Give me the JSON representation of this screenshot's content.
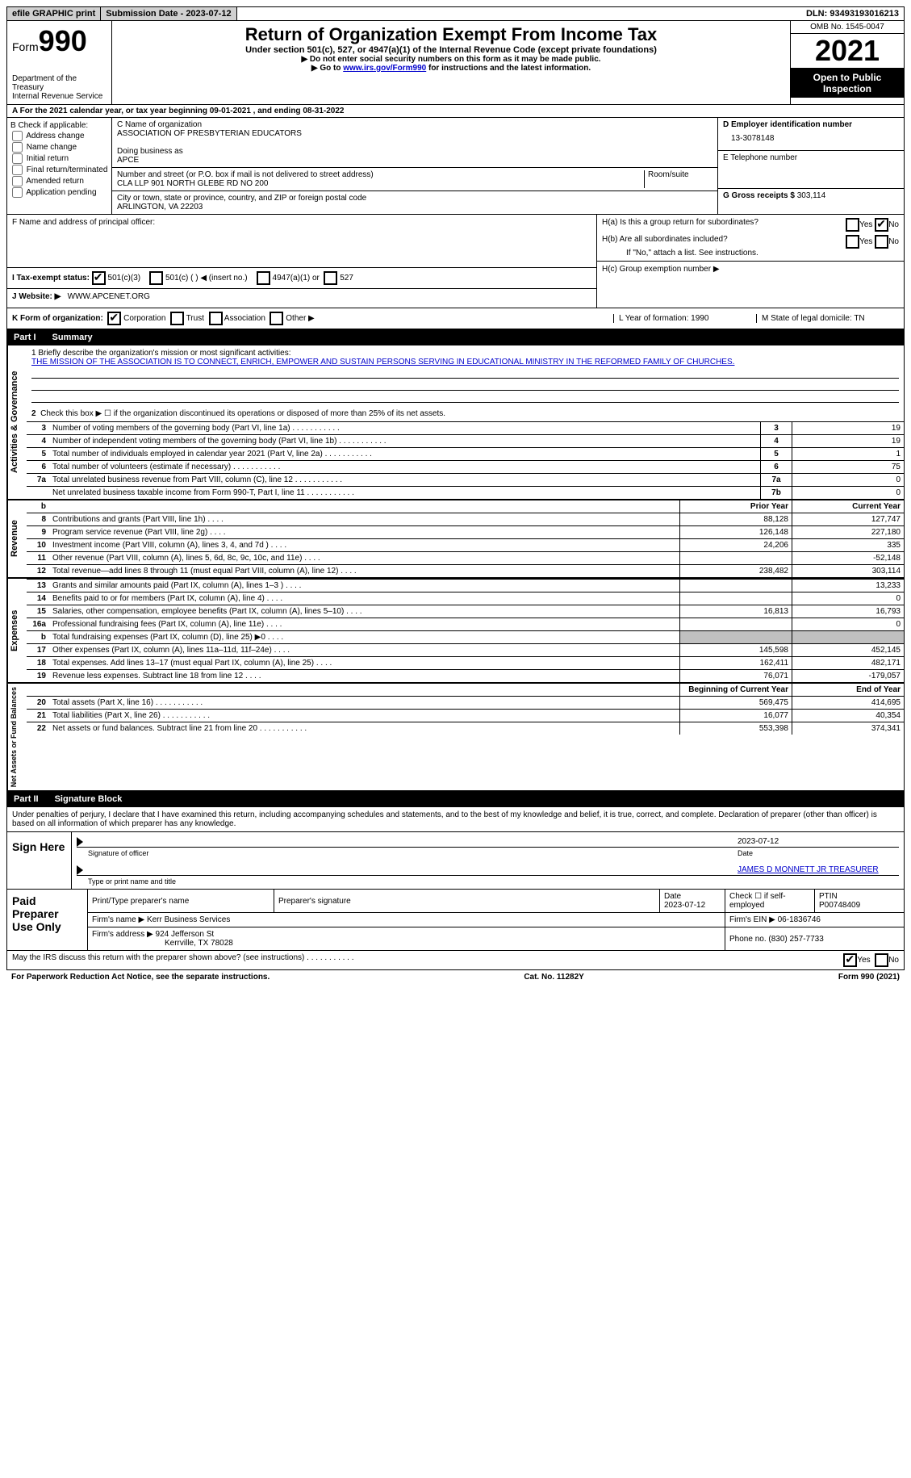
{
  "top": {
    "efile": "efile GRAPHIC print",
    "subdate_label": "Submission Date - 2023-07-12",
    "dln": "DLN: 93493193016213"
  },
  "header": {
    "form_word": "Form",
    "form_num": "990",
    "dept": "Department of the Treasury",
    "irs": "Internal Revenue Service",
    "title": "Return of Organization Exempt From Income Tax",
    "subtitle": "Under section 501(c), 527, or 4947(a)(1) of the Internal Revenue Code (except private foundations)",
    "note1": "▶ Do not enter social security numbers on this form as it may be made public.",
    "note2_pre": "▶ Go to ",
    "note2_link": "www.irs.gov/Form990",
    "note2_post": " for instructions and the latest information.",
    "omb": "OMB No. 1545-0047",
    "year": "2021",
    "pubinsp": "Open to Public Inspection"
  },
  "rowA": "A For the 2021 calendar year, or tax year beginning 09-01-2021    , and ending 08-31-2022",
  "colB": {
    "head": "B Check if applicable:",
    "opts": [
      "Address change",
      "Name change",
      "Initial return",
      "Final return/terminated",
      "Amended return",
      "Application pending"
    ]
  },
  "colC": {
    "name_label": "C Name of organization",
    "name": "ASSOCIATION OF PRESBYTERIAN EDUCATORS",
    "dba_label": "Doing business as",
    "dba": "APCE",
    "street_label": "Number and street (or P.O. box if mail is not delivered to street address)",
    "room_label": "Room/suite",
    "street": "CLA LLP 901 NORTH GLEBE RD NO 200",
    "city_label": "City or town, state or province, country, and ZIP or foreign postal code",
    "city": "ARLINGTON, VA  22203"
  },
  "colD": {
    "ein_label": "D Employer identification number",
    "ein": "13-3078148",
    "phone_label": "E Telephone number",
    "gross_label": "G Gross receipts $",
    "gross": "303,114"
  },
  "sectionF": {
    "label": "F  Name and address of principal officer:"
  },
  "sectionH": {
    "ha": "H(a)  Is this a group return for subordinates?",
    "hb": "H(b)  Are all subordinates included?",
    "hb_note": "If \"No,\" attach a list. See instructions.",
    "hc": "H(c)  Group exemption number ▶",
    "yes": "Yes",
    "no": "No"
  },
  "statusI": {
    "label": "I    Tax-exempt status:",
    "o1": "501(c)(3)",
    "o2": "501(c) (  ) ◀ (insert no.)",
    "o3": "4947(a)(1) or",
    "o4": "527"
  },
  "websiteJ": {
    "label": "J   Website: ▶",
    "val": "WWW.APCENET.ORG"
  },
  "rowK": {
    "label": "K Form of organization:",
    "o1": "Corporation",
    "o2": "Trust",
    "o3": "Association",
    "o4": "Other ▶",
    "L": "L Year of formation: 1990",
    "M": "M State of legal domicile: TN"
  },
  "part1": {
    "num": "Part I",
    "title": "Summary",
    "vlabels": [
      "Activities & Governance",
      "Revenue",
      "Expenses",
      "Net Assets or Fund Balances"
    ],
    "line1_label": "1   Briefly describe the organization's mission or most significant activities:",
    "mission": "THE MISSION OF THE ASSOCIATION IS TO CONNECT, ENRICH, EMPOWER AND SUSTAIN PERSONS SERVING IN EDUCATIONAL MINISTRY IN THE REFORMED FAMILY OF CHURCHES.",
    "line2": "Check this box ▶ ☐ if the organization discontinued its operations or disposed of more than 25% of its net assets.",
    "lines_gov": [
      {
        "n": "3",
        "desc": "Number of voting members of the governing body (Part VI, line 1a)",
        "box": "3",
        "val": "19"
      },
      {
        "n": "4",
        "desc": "Number of independent voting members of the governing body (Part VI, line 1b)",
        "box": "4",
        "val": "19"
      },
      {
        "n": "5",
        "desc": "Total number of individuals employed in calendar year 2021 (Part V, line 2a)",
        "box": "5",
        "val": "1"
      },
      {
        "n": "6",
        "desc": "Total number of volunteers (estimate if necessary)",
        "box": "6",
        "val": "75"
      },
      {
        "n": "7a",
        "desc": "Total unrelated business revenue from Part VIII, column (C), line 12",
        "box": "7a",
        "val": "0"
      },
      {
        "n": "",
        "desc": "Net unrelated business taxable income from Form 990-T, Part I, line 11",
        "box": "7b",
        "val": "0"
      }
    ],
    "col_headers": {
      "b": "b",
      "prior": "Prior Year",
      "current": "Current Year"
    },
    "lines_rev": [
      {
        "n": "8",
        "desc": "Contributions and grants (Part VIII, line 1h)",
        "prior": "88,128",
        "curr": "127,747"
      },
      {
        "n": "9",
        "desc": "Program service revenue (Part VIII, line 2g)",
        "prior": "126,148",
        "curr": "227,180"
      },
      {
        "n": "10",
        "desc": "Investment income (Part VIII, column (A), lines 3, 4, and 7d )",
        "prior": "24,206",
        "curr": "335"
      },
      {
        "n": "11",
        "desc": "Other revenue (Part VIII, column (A), lines 5, 6d, 8c, 9c, 10c, and 11e)",
        "prior": "",
        "curr": "-52,148"
      },
      {
        "n": "12",
        "desc": "Total revenue—add lines 8 through 11 (must equal Part VIII, column (A), line 12)",
        "prior": "238,482",
        "curr": "303,114"
      }
    ],
    "lines_exp": [
      {
        "n": "13",
        "desc": "Grants and similar amounts paid (Part IX, column (A), lines 1–3 )",
        "prior": "",
        "curr": "13,233"
      },
      {
        "n": "14",
        "desc": "Benefits paid to or for members (Part IX, column (A), line 4)",
        "prior": "",
        "curr": "0"
      },
      {
        "n": "15",
        "desc": "Salaries, other compensation, employee benefits (Part IX, column (A), lines 5–10)",
        "prior": "16,813",
        "curr": "16,793"
      },
      {
        "n": "16a",
        "desc": "Professional fundraising fees (Part IX, column (A), line 11e)",
        "prior": "",
        "curr": "0"
      },
      {
        "n": "b",
        "desc": "Total fundraising expenses (Part IX, column (D), line 25) ▶0",
        "prior": "SHADE",
        "curr": "SHADE"
      },
      {
        "n": "17",
        "desc": "Other expenses (Part IX, column (A), lines 11a–11d, 11f–24e)",
        "prior": "145,598",
        "curr": "452,145"
      },
      {
        "n": "18",
        "desc": "Total expenses. Add lines 13–17 (must equal Part IX, column (A), line 25)",
        "prior": "162,411",
        "curr": "482,171"
      },
      {
        "n": "19",
        "desc": "Revenue less expenses. Subtract line 18 from line 12",
        "prior": "76,071",
        "curr": "-179,057"
      }
    ],
    "net_headers": {
      "beg": "Beginning of Current Year",
      "end": "End of Year"
    },
    "lines_net": [
      {
        "n": "20",
        "desc": "Total assets (Part X, line 16)",
        "prior": "569,475",
        "curr": "414,695"
      },
      {
        "n": "21",
        "desc": "Total liabilities (Part X, line 26)",
        "prior": "16,077",
        "curr": "40,354"
      },
      {
        "n": "22",
        "desc": "Net assets or fund balances. Subtract line 21 from line 20",
        "prior": "553,398",
        "curr": "374,341"
      }
    ]
  },
  "part2": {
    "num": "Part II",
    "title": "Signature Block",
    "penalty": "Under penalties of perjury, I declare that I have examined this return, including accompanying schedules and statements, and to the best of my knowledge and belief, it is true, correct, and complete. Declaration of preparer (other than officer) is based on all information of which preparer has any knowledge.",
    "sign_here": "Sign Here",
    "sig_of_officer": "Signature of officer",
    "sig_date": "2023-07-12",
    "date_label": "Date",
    "officer_name": "JAMES D MONNETT JR TREASURER",
    "type_name": "Type or print name and title"
  },
  "prep": {
    "label": "Paid Preparer Use Only",
    "h1": "Print/Type preparer's name",
    "h2": "Preparer's signature",
    "h3_label": "Date",
    "h3": "2023-07-12",
    "h4": "Check ☐ if self-employed",
    "h5_label": "PTIN",
    "h5": "P00748409",
    "firm_name_label": "Firm's name    ▶",
    "firm_name": "Kerr Business Services",
    "firm_ein_label": "Firm's EIN ▶",
    "firm_ein": "06-1836746",
    "firm_addr_label": "Firm's address ▶",
    "firm_addr1": "924 Jefferson St",
    "firm_addr2": "Kerrville, TX  78028",
    "phone_label": "Phone no.",
    "phone": "(830) 257-7733"
  },
  "footer": {
    "discuss": "May the IRS discuss this return with the preparer shown above? (see instructions)",
    "yes": "Yes",
    "no": "No",
    "paperwork": "For Paperwork Reduction Act Notice, see the separate instructions.",
    "cat": "Cat. No. 11282Y",
    "form": "Form 990 (2021)"
  }
}
